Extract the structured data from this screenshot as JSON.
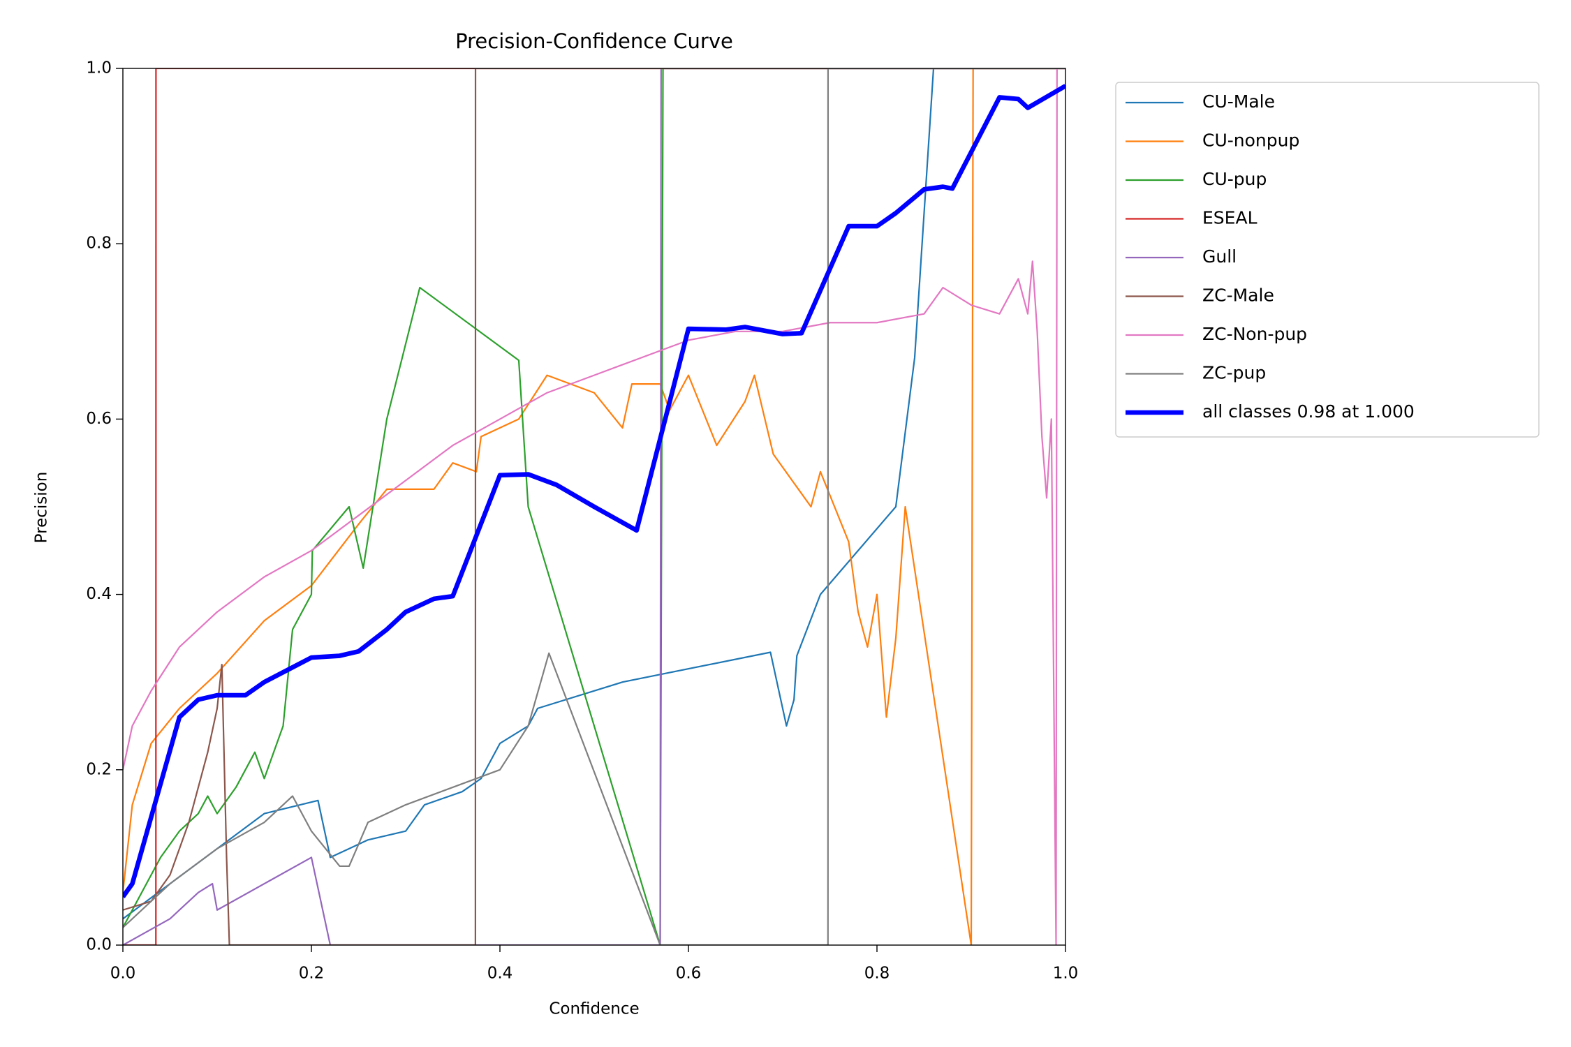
{
  "chart_data": {
    "type": "line",
    "title": "Precision-Confidence Curve",
    "xlabel": "Confidence",
    "ylabel": "Precision",
    "xlim": [
      0,
      1
    ],
    "ylim": [
      0,
      1
    ],
    "xticks": [
      {
        "value": 0,
        "label": "0.0"
      },
      0.2,
      0.4,
      0.6,
      0.8,
      {
        "value": 1,
        "label": "1.0"
      }
    ],
    "yticks": [
      {
        "value": 0,
        "label": "0.0"
      },
      0.2,
      0.4,
      0.6,
      0.8,
      {
        "value": 1,
        "label": "1.0"
      }
    ],
    "legend": "outside-right",
    "series": [
      {
        "name": "CU-Male",
        "color": "#1f77b4",
        "width": 1,
        "x": [
          0,
          0.05,
          0.1,
          0.15,
          0.207,
          0.22,
          0.24,
          0.26,
          0.3,
          0.32,
          0.36,
          0.38,
          0.4,
          0.43,
          0.44,
          0.53,
          0.687,
          0.704,
          0.712,
          0.715,
          0.74,
          0.82,
          0.84,
          0.86,
          1.0
        ],
        "values": [
          0.03,
          0.07,
          0.11,
          0.15,
          0.165,
          0.1,
          0.11,
          0.12,
          0.13,
          0.16,
          0.175,
          0.19,
          0.23,
          0.25,
          0.27,
          0.3,
          0.334,
          0.25,
          0.28,
          0.33,
          0.4,
          0.5,
          0.67,
          1.0,
          1.0
        ]
      },
      {
        "name": "CU-nonpup",
        "color": "#ff7f0e",
        "width": 1,
        "x": [
          0,
          0.01,
          0.03,
          0.06,
          0.1,
          0.15,
          0.2,
          0.25,
          0.28,
          0.33,
          0.35,
          0.375,
          0.38,
          0.42,
          0.45,
          0.5,
          0.53,
          0.54,
          0.57,
          0.58,
          0.6,
          0.63,
          0.66,
          0.67,
          0.69,
          0.73,
          0.74,
          0.77,
          0.78,
          0.79,
          0.8,
          0.81,
          0.82,
          0.83,
          0.9,
          0.902,
          1.0
        ],
        "values": [
          0.06,
          0.16,
          0.23,
          0.27,
          0.31,
          0.37,
          0.41,
          0.48,
          0.52,
          0.52,
          0.55,
          0.54,
          0.58,
          0.6,
          0.65,
          0.63,
          0.59,
          0.64,
          0.64,
          0.61,
          0.65,
          0.57,
          0.62,
          0.65,
          0.56,
          0.5,
          0.54,
          0.46,
          0.38,
          0.34,
          0.4,
          0.26,
          0.35,
          0.5,
          0.0,
          1.0,
          1.0
        ]
      },
      {
        "name": "CU-pup",
        "color": "#2ca02c",
        "width": 1,
        "x": [
          0,
          0.04,
          0.06,
          0.08,
          0.09,
          0.1,
          0.12,
          0.14,
          0.15,
          0.17,
          0.18,
          0.2,
          0.201,
          0.24,
          0.255,
          0.28,
          0.315,
          0.42,
          0.43,
          0.57,
          0.573,
          1.0
        ],
        "values": [
          0.02,
          0.1,
          0.13,
          0.15,
          0.17,
          0.15,
          0.18,
          0.22,
          0.19,
          0.25,
          0.36,
          0.4,
          0.45,
          0.5,
          0.43,
          0.6,
          0.75,
          0.667,
          0.5,
          0.0,
          1.0,
          1.0
        ]
      },
      {
        "name": "ESEAL",
        "color": "#d62728",
        "width": 1,
        "x": [
          0,
          0.035,
          0.0351,
          1.0
        ],
        "values": [
          0,
          0,
          1.0,
          1.0
        ]
      },
      {
        "name": "Gull",
        "color": "#9467bd",
        "width": 1,
        "x": [
          0,
          0.05,
          0.08,
          0.095,
          0.1,
          0.15,
          0.2,
          0.22,
          0.57,
          0.571,
          1.0
        ],
        "values": [
          0,
          0.03,
          0.06,
          0.07,
          0.04,
          0.07,
          0.1,
          0,
          0,
          1.0,
          1.0
        ]
      },
      {
        "name": "ZC-Male",
        "color": "#8c564b",
        "width": 1,
        "x": [
          0,
          0.03,
          0.05,
          0.07,
          0.09,
          0.1,
          0.105,
          0.11,
          0.113,
          0.374,
          0.3741,
          1.0
        ],
        "values": [
          0.04,
          0.05,
          0.08,
          0.14,
          0.22,
          0.27,
          0.32,
          0.1,
          0,
          0,
          1.0,
          1.0
        ]
      },
      {
        "name": "ZC-Non-pup",
        "color": "#e377c2",
        "width": 1,
        "x": [
          0,
          0.01,
          0.03,
          0.06,
          0.1,
          0.15,
          0.2,
          0.25,
          0.3,
          0.35,
          0.4,
          0.45,
          0.5,
          0.55,
          0.6,
          0.65,
          0.7,
          0.75,
          0.8,
          0.85,
          0.87,
          0.9,
          0.93,
          0.95,
          0.96,
          0.965,
          0.97,
          0.975,
          0.98,
          0.985,
          0.99,
          0.991,
          1.0
        ],
        "values": [
          0.2,
          0.25,
          0.29,
          0.34,
          0.38,
          0.42,
          0.45,
          0.49,
          0.53,
          0.57,
          0.6,
          0.63,
          0.65,
          0.67,
          0.69,
          0.7,
          0.7,
          0.71,
          0.71,
          0.72,
          0.75,
          0.73,
          0.72,
          0.76,
          0.72,
          0.78,
          0.7,
          0.58,
          0.51,
          0.6,
          0,
          1.0,
          1.0
        ]
      },
      {
        "name": "ZC-pup",
        "color": "#7f7f7f",
        "width": 1,
        "x": [
          0,
          0.05,
          0.1,
          0.15,
          0.18,
          0.2,
          0.23,
          0.24,
          0.26,
          0.3,
          0.4,
          0.43,
          0.452,
          0.57,
          0.748,
          0.7481,
          1.0
        ],
        "values": [
          0.02,
          0.07,
          0.11,
          0.14,
          0.17,
          0.13,
          0.09,
          0.09,
          0.14,
          0.16,
          0.2,
          0.25,
          0.333,
          0,
          0,
          1.0,
          1.0
        ]
      },
      {
        "name": "all classes 0.98 at 1.000",
        "color": "#0000ff",
        "width": 3,
        "x": [
          0,
          0.01,
          0.06,
          0.08,
          0.1,
          0.13,
          0.15,
          0.2,
          0.23,
          0.25,
          0.28,
          0.3,
          0.33,
          0.35,
          0.4,
          0.43,
          0.46,
          0.5,
          0.545,
          0.6,
          0.64,
          0.66,
          0.7,
          0.72,
          0.77,
          0.8,
          0.82,
          0.85,
          0.87,
          0.88,
          0.93,
          0.95,
          0.96,
          1.0
        ],
        "values": [
          0.055,
          0.07,
          0.26,
          0.28,
          0.285,
          0.285,
          0.3,
          0.328,
          0.33,
          0.335,
          0.36,
          0.38,
          0.395,
          0.398,
          0.536,
          0.537,
          0.525,
          0.5,
          0.473,
          0.703,
          0.702,
          0.705,
          0.697,
          0.698,
          0.82,
          0.82,
          0.835,
          0.862,
          0.865,
          0.863,
          0.967,
          0.965,
          0.955,
          0.98
        ]
      }
    ]
  }
}
